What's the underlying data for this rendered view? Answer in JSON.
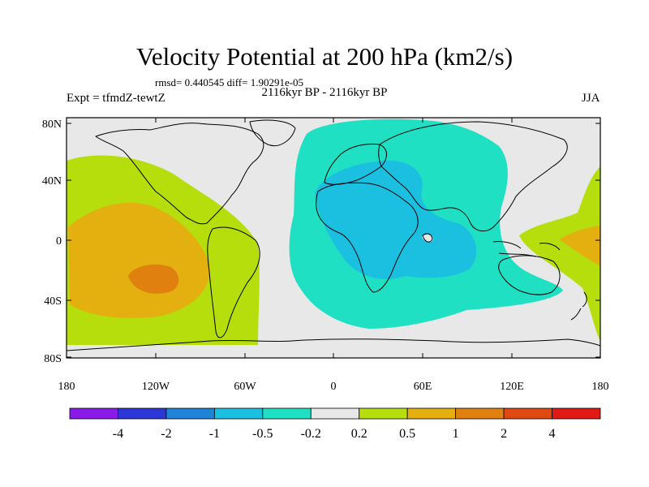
{
  "title": "Velocity Potential at 200 hPa (km2/s)",
  "stats": "rmsd= 0.440545 diff= 1.90291e-05",
  "period": "2116kyr BP - 2116kyr BP",
  "experiment": "Expt = tfmdZ-tewtZ",
  "season": "JJA",
  "axes": {
    "lat_labels": [
      "80N",
      "40N",
      "0",
      "40S",
      "80S"
    ],
    "lon_labels": [
      "180",
      "120W",
      "60W",
      "0",
      "60E",
      "120E",
      "180"
    ]
  },
  "colorbar": {
    "labels": [
      "-4",
      "-2",
      "-1",
      "-0.5",
      "-0.2",
      "0.2",
      "0.5",
      "1",
      "2",
      "4"
    ],
    "colors": [
      "#8a1ae8",
      "#2d37d8",
      "#1f83d8",
      "#1bc0e0",
      "#1fe0c2",
      "#e8e8e8",
      "#b5de0c",
      "#e3b010",
      "#e0800e",
      "#e04a10",
      "#e01a14"
    ]
  },
  "field_colors": {
    "ocean_neutral": "#e8e8e8",
    "neg_weak": "#1fe0c2",
    "neg_mod": "#1bc0e0",
    "pos_weak": "#b5de0c",
    "pos_mod": "#e3b010",
    "pos_strong": "#e0800e"
  }
}
